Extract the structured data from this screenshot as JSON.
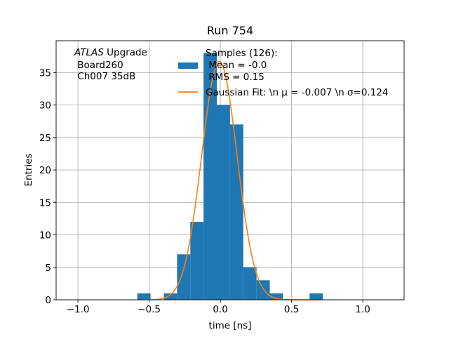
{
  "chart_data": {
    "type": "bar",
    "title": "Run 754",
    "xlabel": "time [ns]",
    "ylabel": "Entries",
    "xlim": [
      -1.153,
      1.29
    ],
    "ylim": [
      0,
      39.9
    ],
    "grid": true,
    "xticks": [
      -1.0,
      -0.5,
      0.0,
      0.5,
      1.0
    ],
    "xtick_labels": [
      "−1.0",
      "−0.5",
      "0.0",
      "0.5",
      "1.0"
    ],
    "yticks": [
      0,
      5,
      10,
      15,
      20,
      25,
      30,
      35
    ],
    "ytick_labels": [
      "0",
      "5",
      "10",
      "15",
      "20",
      "25",
      "30",
      "35"
    ],
    "histogram": {
      "bin_start": -0.583,
      "bin_width": 0.093,
      "counts": [
        1,
        0,
        1,
        7,
        12,
        38,
        30,
        27,
        5,
        3,
        1,
        0,
        0,
        1
      ],
      "color": "#1f77b4"
    },
    "fit": {
      "amplitude": 36.7,
      "mu": -0.007,
      "sigma": 0.124,
      "x_range": [
        -0.55,
        0.69
      ],
      "color": "#ff7f0e"
    },
    "annotation": {
      "italic": "ATLAS",
      "line1": " Upgrade",
      "line2": " Board260",
      "line3": " Ch007 35dB"
    },
    "legend": {
      "placement": "top-center",
      "hist_lines": [
        "Samples (126):",
        " Mean = -0.0",
        " RMS = 0.15"
      ],
      "fit_label": "Gaussian Fit: \\n μ = -0.007 \\n σ=0.124"
    }
  }
}
